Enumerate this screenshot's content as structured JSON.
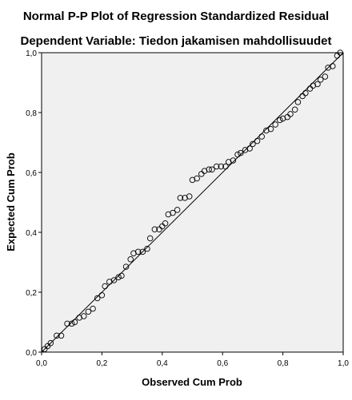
{
  "chart_data": {
    "type": "scatter",
    "title": "Normal P-P Plot of Regression Standardized Residual",
    "subtitle": "Dependent Variable: Tiedon jakamisen mahdollisuudet",
    "xlabel": "Observed Cum Prob",
    "ylabel": "Expected Cum Prob",
    "xlim": [
      0,
      1
    ],
    "ylim": [
      0,
      1
    ],
    "xticks": [
      "0,0",
      "0,2",
      "0,4",
      "0,6",
      "0,8",
      "1,0"
    ],
    "yticks": [
      "0,0",
      "0,2",
      "0,4",
      "0,6",
      "0,8",
      "1,0"
    ],
    "grid": false,
    "reference_line": [
      [
        0,
        0
      ],
      [
        1,
        1
      ]
    ],
    "colors": {
      "plot_background": "#f0f0f0",
      "points": "#000000",
      "line": "#000000"
    },
    "points": [
      [
        0.01,
        0.01
      ],
      [
        0.02,
        0.02
      ],
      [
        0.03,
        0.03
      ],
      [
        0.05,
        0.055
      ],
      [
        0.065,
        0.055
      ],
      [
        0.085,
        0.095
      ],
      [
        0.1,
        0.095
      ],
      [
        0.11,
        0.1
      ],
      [
        0.125,
        0.115
      ],
      [
        0.14,
        0.12
      ],
      [
        0.155,
        0.135
      ],
      [
        0.17,
        0.145
      ],
      [
        0.185,
        0.18
      ],
      [
        0.2,
        0.19
      ],
      [
        0.21,
        0.22
      ],
      [
        0.225,
        0.235
      ],
      [
        0.24,
        0.24
      ],
      [
        0.255,
        0.25
      ],
      [
        0.265,
        0.255
      ],
      [
        0.28,
        0.285
      ],
      [
        0.295,
        0.31
      ],
      [
        0.305,
        0.33
      ],
      [
        0.32,
        0.335
      ],
      [
        0.335,
        0.335
      ],
      [
        0.35,
        0.345
      ],
      [
        0.36,
        0.38
      ],
      [
        0.375,
        0.41
      ],
      [
        0.39,
        0.41
      ],
      [
        0.4,
        0.42
      ],
      [
        0.41,
        0.43
      ],
      [
        0.42,
        0.46
      ],
      [
        0.435,
        0.465
      ],
      [
        0.45,
        0.475
      ],
      [
        0.46,
        0.515
      ],
      [
        0.475,
        0.515
      ],
      [
        0.49,
        0.52
      ],
      [
        0.5,
        0.575
      ],
      [
        0.515,
        0.58
      ],
      [
        0.53,
        0.595
      ],
      [
        0.54,
        0.605
      ],
      [
        0.555,
        0.61
      ],
      [
        0.565,
        0.61
      ],
      [
        0.58,
        0.62
      ],
      [
        0.595,
        0.62
      ],
      [
        0.61,
        0.62
      ],
      [
        0.62,
        0.635
      ],
      [
        0.635,
        0.64
      ],
      [
        0.65,
        0.66
      ],
      [
        0.66,
        0.665
      ],
      [
        0.675,
        0.675
      ],
      [
        0.69,
        0.68
      ],
      [
        0.7,
        0.695
      ],
      [
        0.715,
        0.705
      ],
      [
        0.73,
        0.72
      ],
      [
        0.745,
        0.74
      ],
      [
        0.76,
        0.745
      ],
      [
        0.775,
        0.76
      ],
      [
        0.79,
        0.775
      ],
      [
        0.8,
        0.78
      ],
      [
        0.815,
        0.785
      ],
      [
        0.825,
        0.795
      ],
      [
        0.84,
        0.81
      ],
      [
        0.85,
        0.835
      ],
      [
        0.865,
        0.855
      ],
      [
        0.875,
        0.865
      ],
      [
        0.89,
        0.88
      ],
      [
        0.9,
        0.89
      ],
      [
        0.915,
        0.895
      ],
      [
        0.925,
        0.91
      ],
      [
        0.94,
        0.92
      ],
      [
        0.95,
        0.95
      ],
      [
        0.965,
        0.955
      ],
      [
        0.98,
        0.99
      ],
      [
        0.99,
        1.0
      ]
    ]
  }
}
